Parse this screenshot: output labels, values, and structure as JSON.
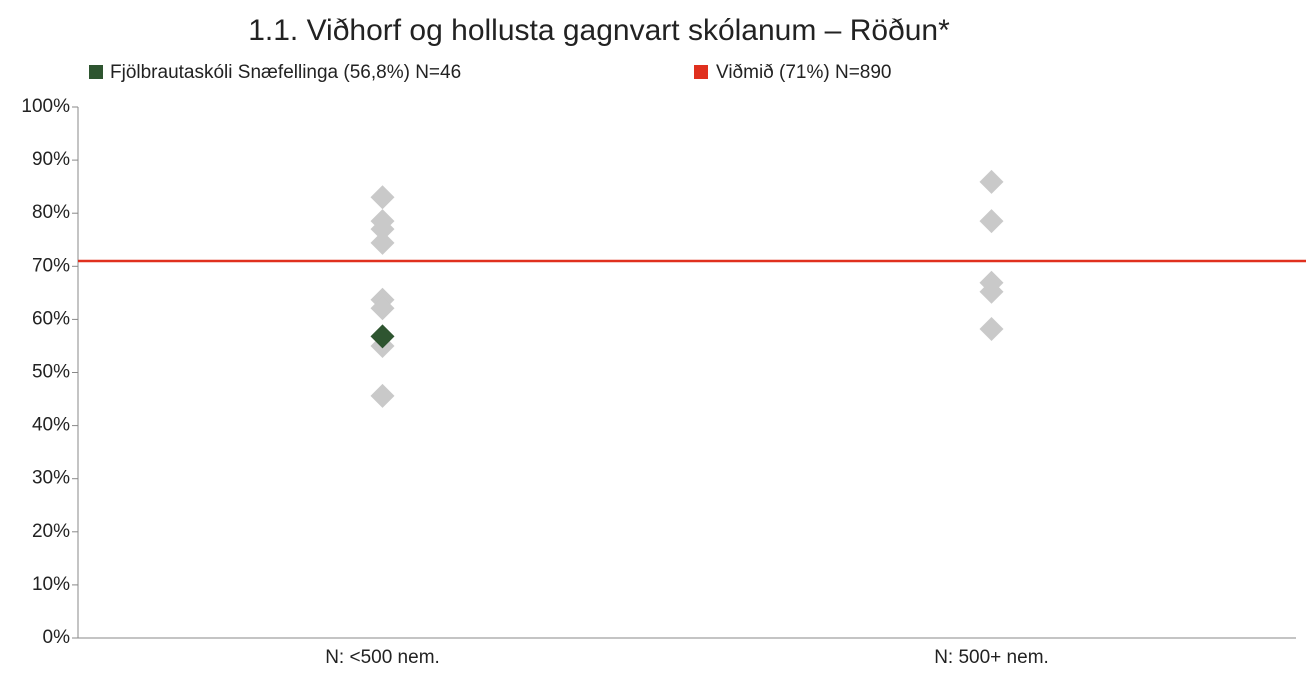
{
  "chart_data": {
    "type": "strip",
    "title": "1.1. Viðhorf og hollusta gagnvart skólanum – Röðun*",
    "categories": [
      "N: <500 nem.",
      "N: 500+ nem."
    ],
    "other_points": [
      [
        83.0,
        78.5,
        77.0,
        74.4,
        63.7,
        62.1,
        55.0,
        45.6
      ],
      [
        85.9,
        78.5,
        66.9,
        65.2,
        58.2
      ]
    ],
    "other_color": "#c9c9c9",
    "series": [
      {
        "name": "Fjölbrautaskóli Snæfellinga (56,8%) N=46",
        "color": "#2e5530",
        "values": [
          56.8,
          null
        ]
      }
    ],
    "reference_line": {
      "name": "Viðmið (71%) N=890",
      "color": "#e0301e",
      "value": 71
    },
    "ylim": [
      0,
      100
    ],
    "yticks": [
      {
        "value": 0,
        "label": "0%"
      },
      {
        "value": 10,
        "label": "10%"
      },
      {
        "value": 20,
        "label": "20%"
      },
      {
        "value": 30,
        "label": "30%"
      },
      {
        "value": 40,
        "label": "40%"
      },
      {
        "value": 50,
        "label": "50%"
      },
      {
        "value": 60,
        "label": "60%"
      },
      {
        "value": 70,
        "label": "70%"
      },
      {
        "value": 80,
        "label": "80%"
      },
      {
        "value": 90,
        "label": "90%"
      },
      {
        "value": 100,
        "label": "100%"
      }
    ]
  }
}
